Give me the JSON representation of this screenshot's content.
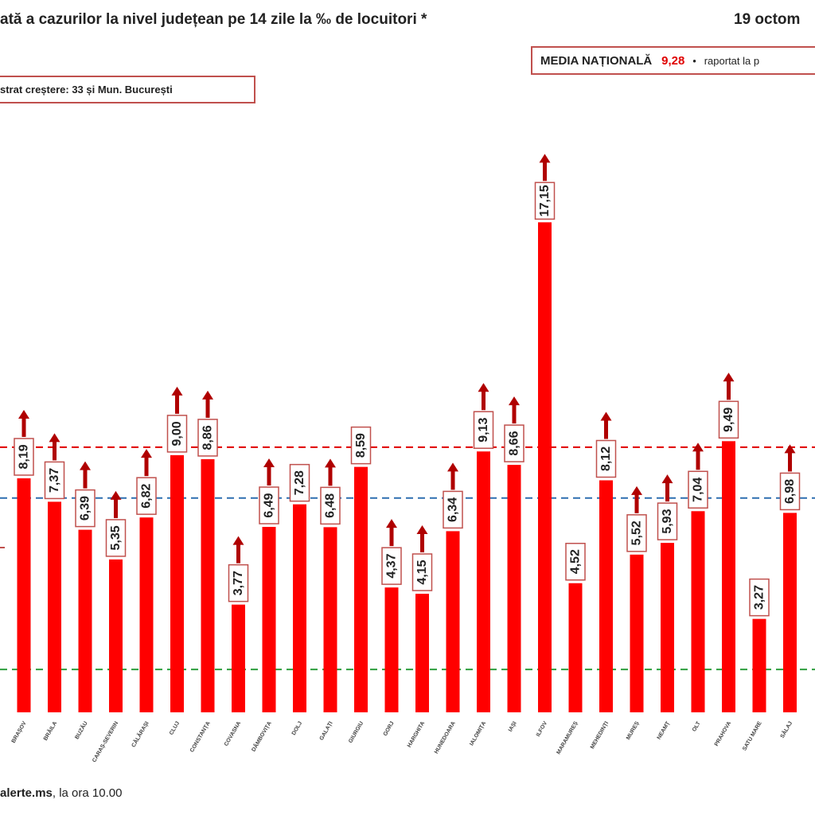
{
  "title": "ată a cazurilor la nivel județean pe 14 zile la ‰ de locuitori *",
  "date": "19 octom",
  "national_box": {
    "label": "MEDIA NAȚIONALĂ",
    "value": "9,28",
    "bullet": "•",
    "suffix": "raportat la p"
  },
  "growth_box": {
    "text": "strat creștere:  33 și Mun. București"
  },
  "source": {
    "bold": "alerte.ms",
    "rest": ", la ora 10.00"
  },
  "colors": {
    "bar": "#ff0000",
    "arrow": "#b00000",
    "label_border": "#c0504d",
    "line_red": "#e00000",
    "line_blue": "#2f6fb0",
    "line_green": "#2e9e3e"
  },
  "chart_data": {
    "type": "bar",
    "categories": [
      "BRAȘOV",
      "BRĂILA",
      "BUZĂU",
      "CARAȘ-SEVERIN",
      "CĂLĂRAȘI",
      "CLUJ",
      "CONSTANȚA",
      "COVASNA",
      "DÂMBOVIȚA",
      "DOLJ",
      "GALAȚI",
      "GIURGIU",
      "GORJ",
      "HARGHITA",
      "HUNEDOARA",
      "IALOMIȚA",
      "IAȘI",
      "ILFOV",
      "MARAMUREȘ",
      "MEHEDINȚI",
      "MUREȘ",
      "NEAMȚ",
      "OLT",
      "PRAHOVA",
      "SATU MARE",
      "SĂLAJ"
    ],
    "values": [
      8.19,
      7.37,
      6.39,
      5.35,
      6.82,
      9.0,
      8.86,
      3.77,
      6.49,
      7.28,
      6.48,
      8.59,
      4.37,
      4.15,
      6.34,
      9.13,
      8.66,
      17.15,
      4.52,
      8.12,
      5.52,
      5.93,
      7.04,
      9.49,
      3.27,
      6.98
    ],
    "value_labels": [
      "8,19",
      "7,37",
      "6,39",
      "5,35",
      "6,82",
      "9,00",
      "8,86",
      "3,77",
      "6,49",
      "7,28",
      "6,48",
      "8,59",
      "4,37",
      "4,15",
      "6,34",
      "9,13",
      "8,66",
      "17,15",
      "4,52",
      "8,12",
      "5,52",
      "5,93",
      "7,04",
      "9,49",
      "3,27",
      "6,98"
    ],
    "arrows": [
      true,
      true,
      true,
      true,
      true,
      true,
      true,
      true,
      true,
      false,
      true,
      false,
      true,
      true,
      true,
      true,
      true,
      true,
      false,
      true,
      true,
      true,
      true,
      true,
      false,
      true
    ],
    "reference_lines": [
      {
        "value": 9.28,
        "style": "dashed",
        "color": "#e00000"
      },
      {
        "value": 7.5,
        "style": "dashed",
        "color": "#2f6fb0"
      },
      {
        "value": 1.5,
        "style": "dashed",
        "color": "#2e9e3e"
      }
    ],
    "ylim": [
      0,
      18
    ]
  }
}
